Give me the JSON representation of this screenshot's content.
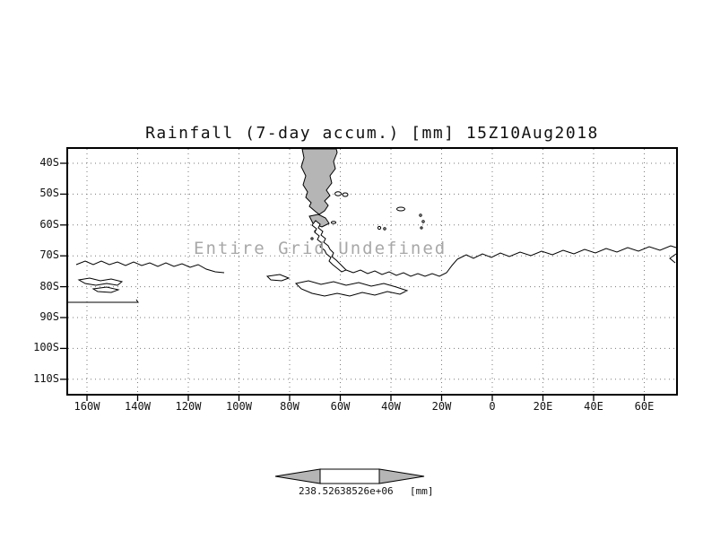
{
  "chart_data": {
    "type": "heatmap",
    "title": "Rainfall (7-day accum.) [mm] 15Z10Aug2018",
    "annotation": "Entire Grid Undefined",
    "data_status": "undefined",
    "x_axis": {
      "tick_labels": [
        "160W",
        "140W",
        "120W",
        "100W",
        "80W",
        "60W",
        "40W",
        "20W",
        "0",
        "20E",
        "40E",
        "60E"
      ]
    },
    "y_axis": {
      "tick_labels": [
        "40S",
        "50S",
        "60S",
        "70S",
        "80S",
        "90S",
        "100S",
        "110S"
      ]
    },
    "grid": {
      "style": "dotted",
      "on": true
    },
    "legend_position": "none",
    "colorbar": {
      "left_label": "238.526",
      "right_label": "38526e+06",
      "unit": "[mm]"
    },
    "colors": {
      "land_fill": "#b5b5b5",
      "coastline": "#000000",
      "gridline": "#7a7a7a",
      "annotation_text": "#a8a8a8",
      "colorbar_arrow": "#b5b5b5",
      "background": "#ffffff"
    }
  }
}
